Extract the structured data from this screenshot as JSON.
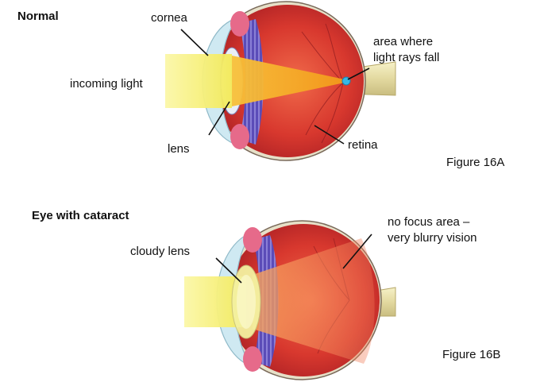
{
  "panel_a": {
    "title": "Normal",
    "labels": {
      "cornea": "cornea",
      "incoming_light": "incoming light",
      "area_line1": "area where",
      "area_line2": "light rays fall",
      "lens": "lens",
      "retina": "retina"
    },
    "figure_label": "Figure 16A"
  },
  "panel_b": {
    "title": "Eye with cataract",
    "labels": {
      "cloudy_lens": "cloudy lens",
      "nofocus_line1": "no focus area –",
      "nofocus_line2": "very blurry vision"
    },
    "figure_label": "Figure 16B"
  },
  "colors": {
    "eye_red": "#d8382e",
    "light_yellow": "#f5f07a",
    "focus_orange": "#f6a21e",
    "focus_point": "#36b8e6",
    "lens_purple": "#4a3fa8"
  }
}
